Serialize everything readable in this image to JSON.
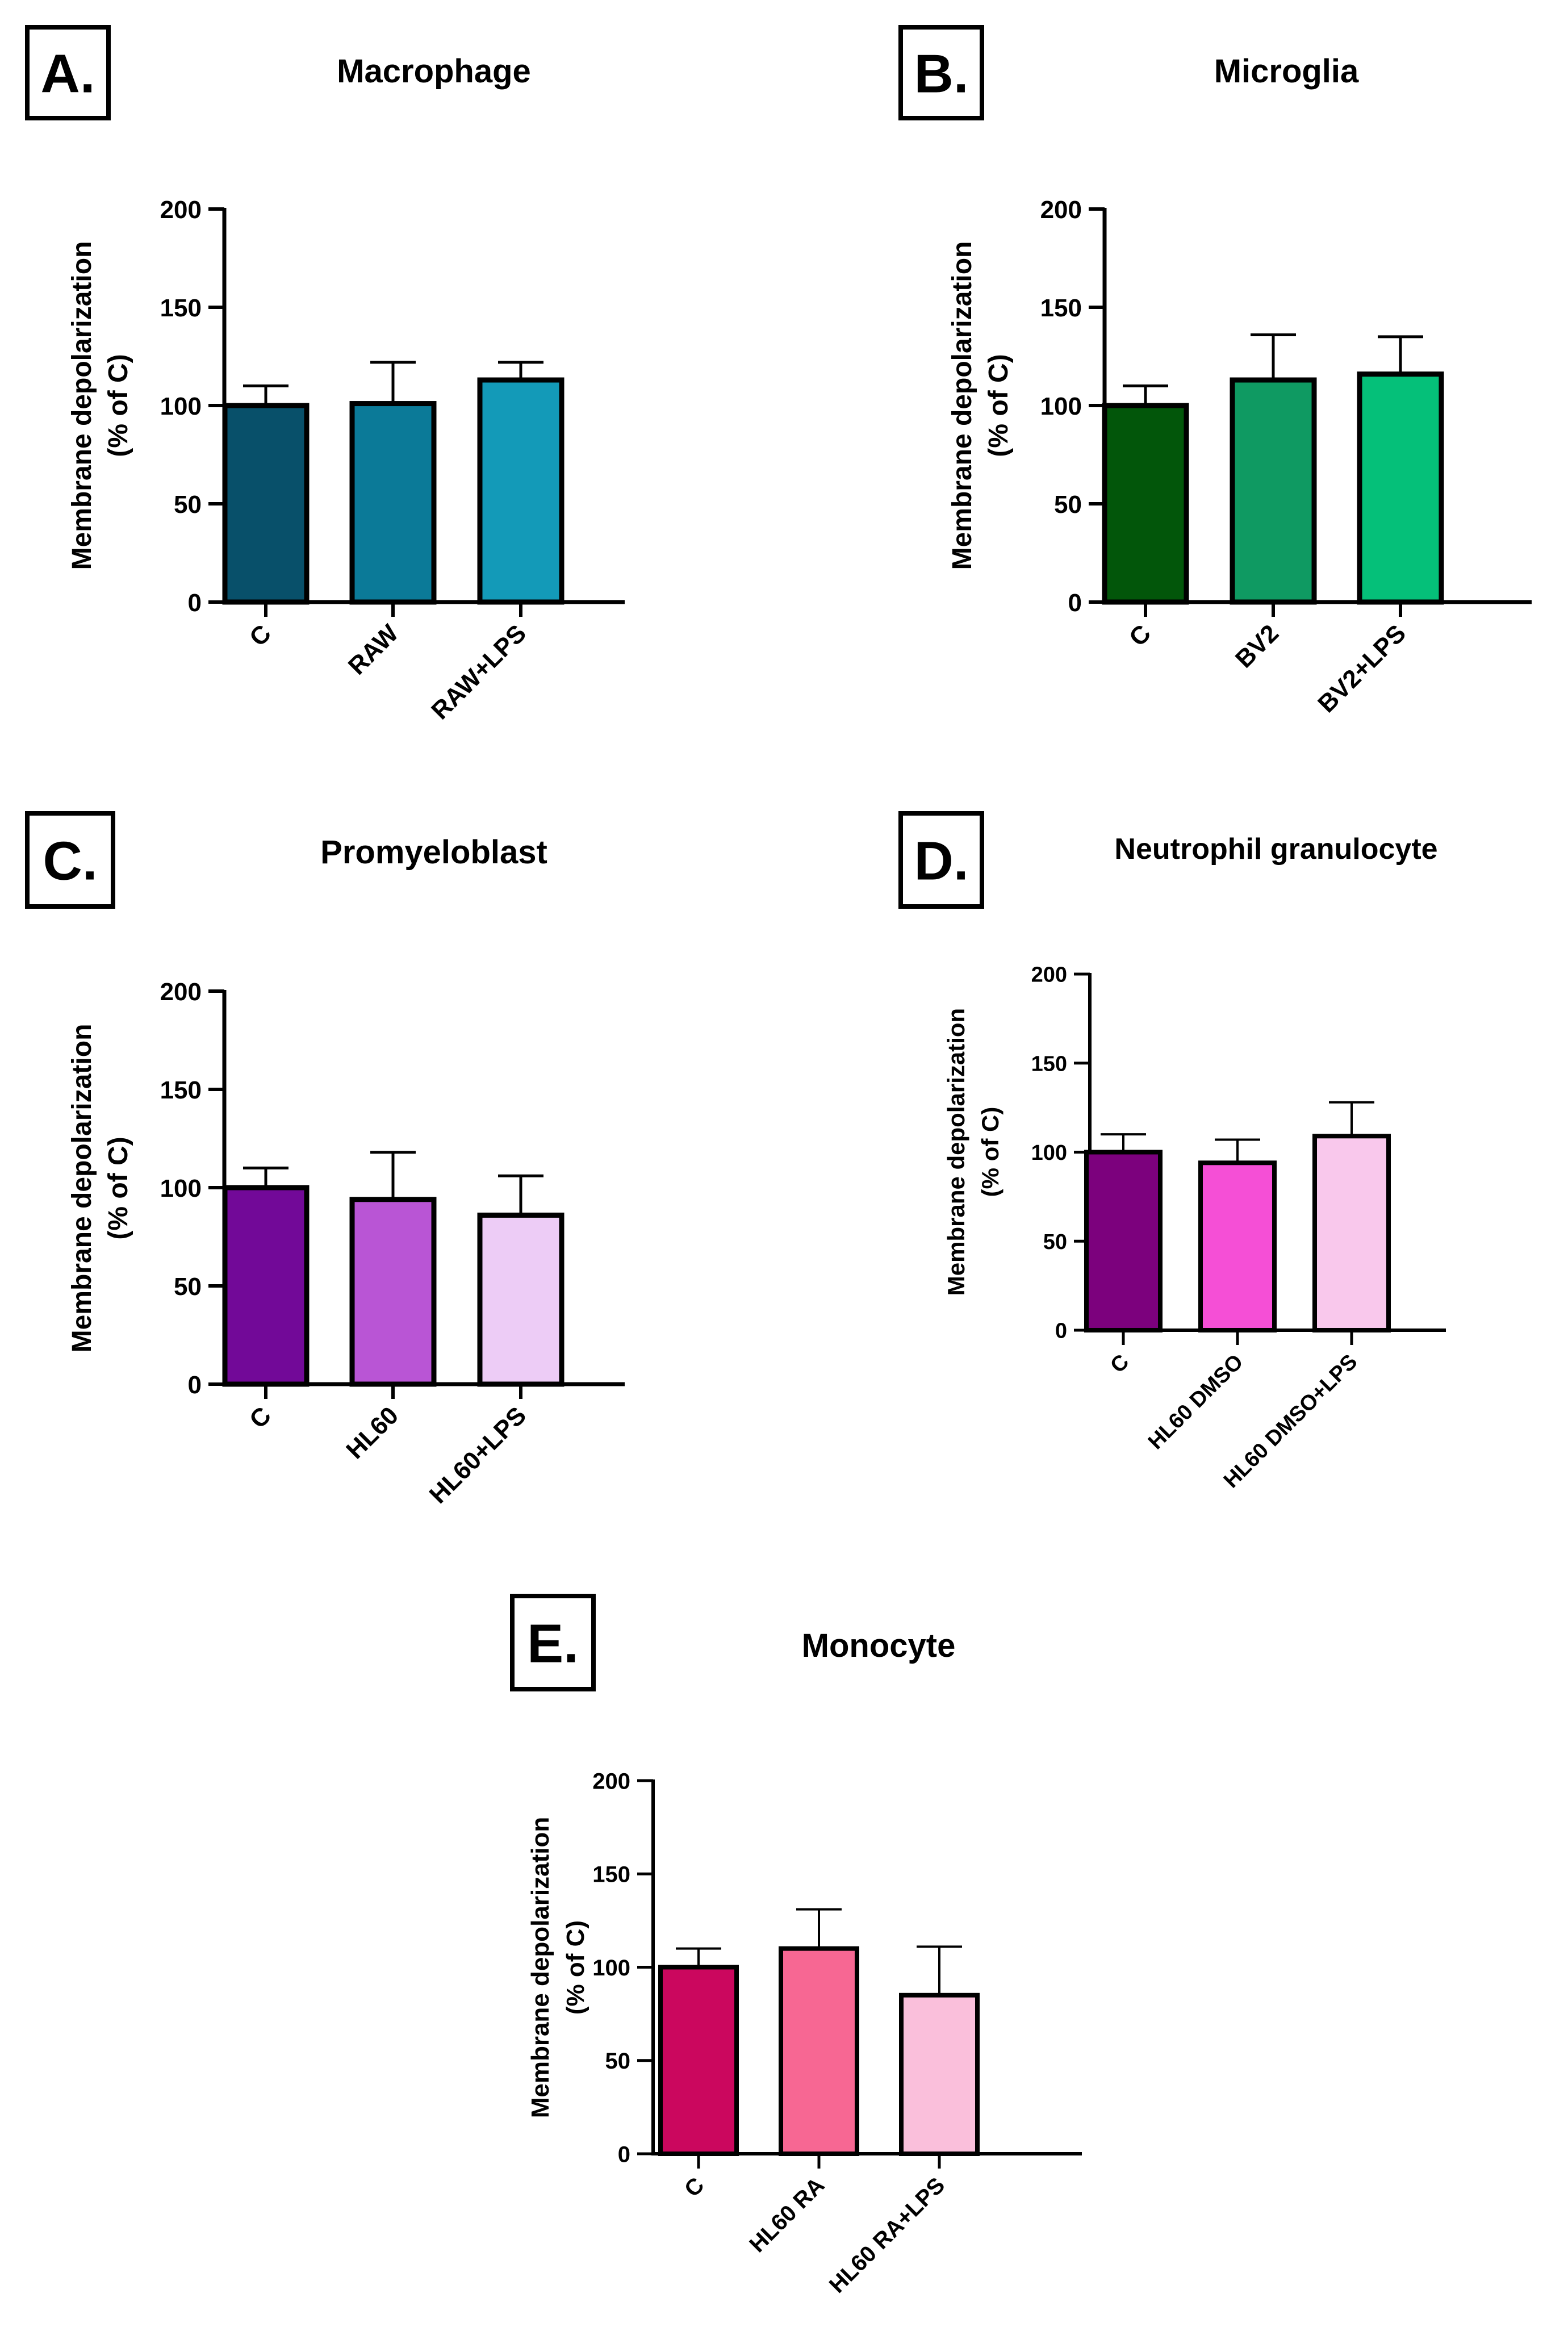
{
  "chart_data": [
    {
      "panel": "A.",
      "type": "bar",
      "title": "Macrophage",
      "ylabel": "Membrane depolarization",
      "ylabel2": "(% of C)",
      "xlabel": "",
      "categories": [
        "C",
        "RAW",
        "RAW+LPS"
      ],
      "values": [
        100,
        101,
        113
      ],
      "errors": [
        10,
        21,
        9
      ],
      "colors": [
        "#08506a",
        "#0b7a98",
        "#139ab8"
      ],
      "yticks": [
        0,
        50,
        100,
        150,
        200
      ],
      "ylim": [
        0,
        200
      ],
      "grid": false
    },
    {
      "panel": "B.",
      "type": "bar",
      "title": "Microglia",
      "ylabel": "Membrane depolarization",
      "ylabel2": "(% of C)",
      "xlabel": "",
      "categories": [
        "C",
        "BV2",
        "BV2+LPS"
      ],
      "values": [
        100,
        113,
        116
      ],
      "errors": [
        10,
        23,
        19
      ],
      "colors": [
        "#02560a",
        "#0f9a62",
        "#05c079"
      ],
      "yticks": [
        0,
        50,
        100,
        150,
        200
      ],
      "ylim": [
        0,
        200
      ],
      "grid": false
    },
    {
      "panel": "C.",
      "type": "bar",
      "title": "Promyeloblast",
      "ylabel": "Membrane depolarization",
      "ylabel2": "(% of C)",
      "xlabel": "",
      "categories": [
        "C",
        "HL60",
        "HL60+LPS"
      ],
      "values": [
        100,
        94,
        86
      ],
      "errors": [
        10,
        24,
        20
      ],
      "colors": [
        "#720998",
        "#b955d5",
        "#edccf6"
      ],
      "yticks": [
        0,
        50,
        100,
        150,
        200
      ],
      "ylim": [
        0,
        200
      ],
      "grid": false
    },
    {
      "panel": "D.",
      "type": "bar",
      "title": "Neutrophil granulocyte",
      "ylabel": "Membrane depolarization",
      "ylabel2": "(% of C)",
      "xlabel": "",
      "categories": [
        "C",
        "HL60 DMSO",
        "HL60 DMSO+LPS"
      ],
      "values": [
        100,
        94,
        109
      ],
      "errors": [
        10,
        13,
        19
      ],
      "colors": [
        "#7c017d",
        "#f54fd6",
        "#f9c8ec"
      ],
      "yticks": [
        0,
        50,
        100,
        150,
        200
      ],
      "ylim": [
        0,
        200
      ],
      "grid": false
    },
    {
      "panel": "E.",
      "type": "bar",
      "title": "Monocyte",
      "ylabel": "Membrane depolarization",
      "ylabel2": "(% of C)",
      "xlabel": "",
      "categories": [
        "C",
        "HL60 RA",
        "HL60 RA+LPS"
      ],
      "values": [
        100,
        110,
        85
      ],
      "errors": [
        10,
        21,
        26
      ],
      "colors": [
        "#cb075e",
        "#f76793",
        "#fabfdb"
      ],
      "yticks": [
        0,
        50,
        100,
        150,
        200
      ],
      "ylim": [
        0,
        200
      ],
      "grid": false
    }
  ]
}
